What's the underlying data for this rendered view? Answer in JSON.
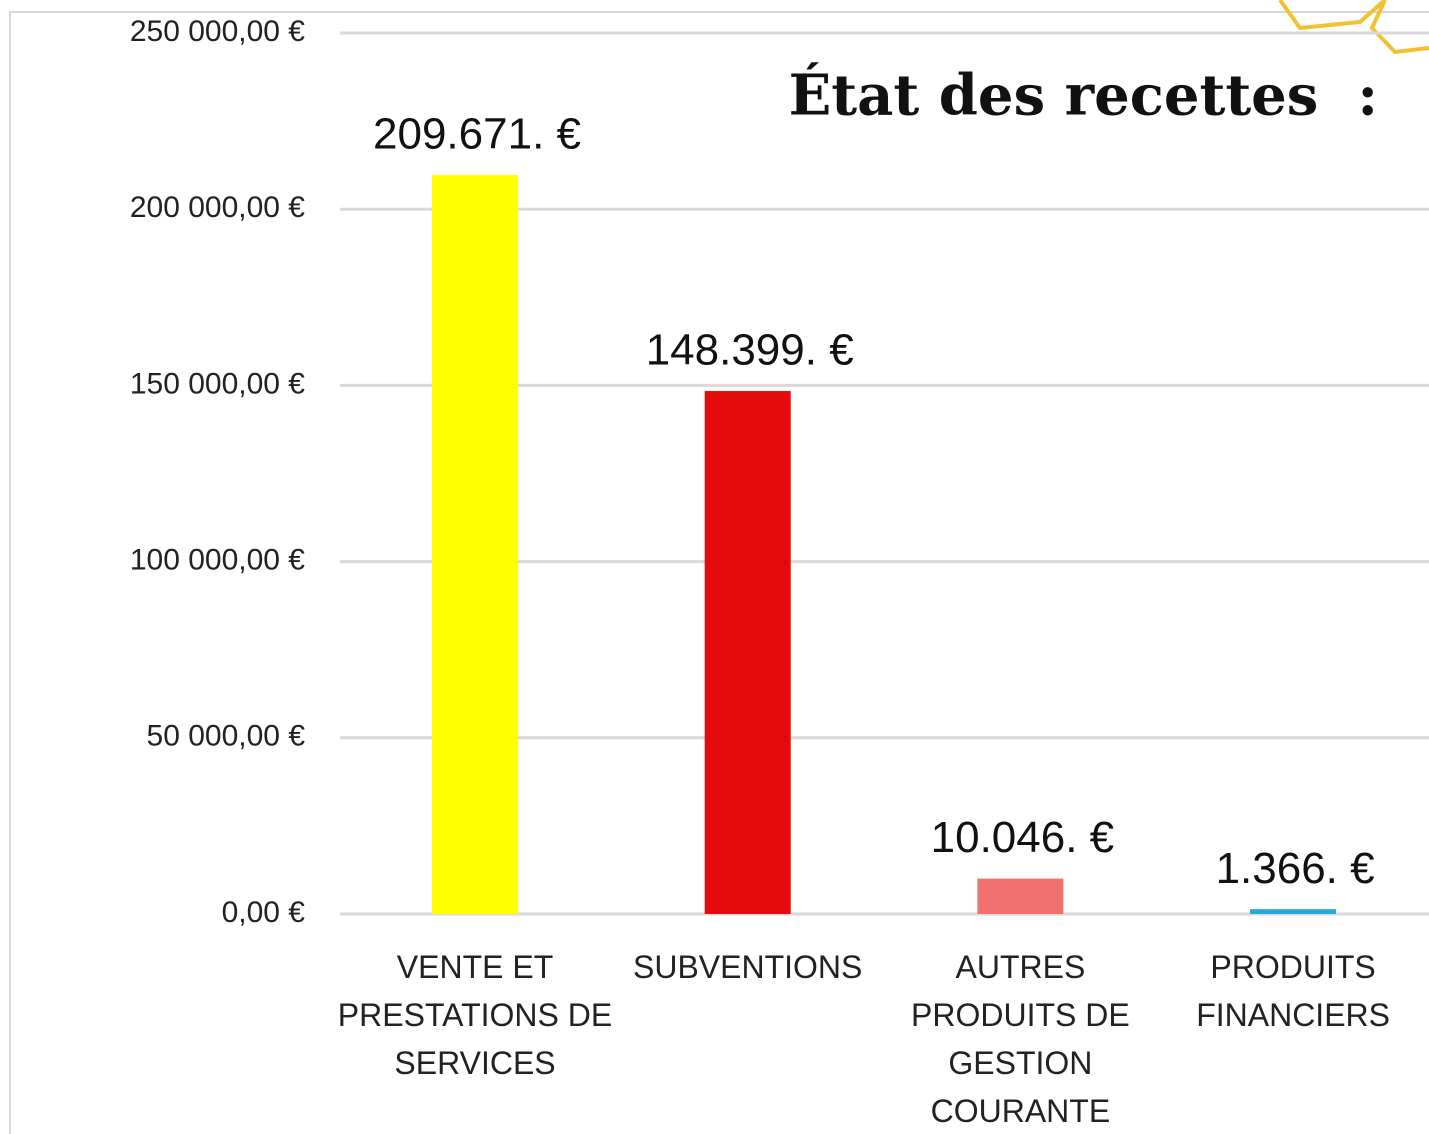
{
  "chart_data": {
    "type": "bar",
    "title": "État des recettes  :",
    "categories": [
      "VENTE ET\nPRESTATIONS DE\nSERVICES",
      "SUBVENTIONS",
      "AUTRES\nPRODUITS DE\nGESTION\nCOURANTE",
      "PRODUITS\nFINANCIERS"
    ],
    "values": [
      209671,
      148399,
      10046,
      1366
    ],
    "value_labels": [
      "209.671. €",
      "148.399. €",
      "10.046. €",
      "1.366. €"
    ],
    "colors": [
      "#ffff00",
      "#e30b0b",
      "#f07070",
      "#29a8e0"
    ],
    "ylim": [
      0,
      250000
    ],
    "yticks": [
      {
        "value": 0,
        "label": "0,00 €"
      },
      {
        "value": 50000,
        "label": "50 000,00 €"
      },
      {
        "value": 100000,
        "label": "100 000,00 €"
      },
      {
        "value": 150000,
        "label": "150 000,00 €"
      },
      {
        "value": 200000,
        "label": "200 000,00 €"
      },
      {
        "value": 250000,
        "label": "250 000,00 €"
      }
    ],
    "grid": true
  }
}
